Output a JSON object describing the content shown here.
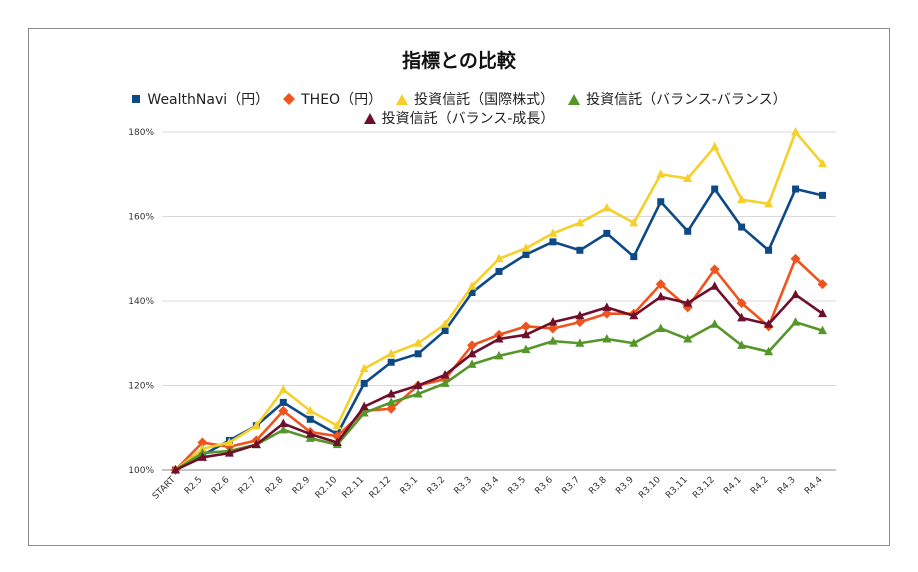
{
  "chart_data": {
    "type": "line",
    "title": "指標との比較",
    "xlabel": "",
    "ylabel": "",
    "categories": [
      "START",
      "R2.5",
      "R2.6",
      "R2.7",
      "R2.8",
      "R2.9",
      "R2.10",
      "R2.11",
      "R2.12",
      "R3.1",
      "R3.2",
      "R3.3",
      "R3.4",
      "R3.5",
      "R3.6",
      "R3.7",
      "R3.8",
      "R3.9",
      "R3.10",
      "R3.11",
      "R3.12",
      "R4.1",
      "R4.2",
      "R4.3",
      "R4.4"
    ],
    "ylim": [
      100,
      180
    ],
    "yticks": [
      100,
      120,
      140,
      160,
      180
    ],
    "ytick_labels": [
      "100%",
      "120%",
      "140%",
      "160%",
      "180%"
    ],
    "grid": true,
    "legend_position": "top",
    "series": [
      {
        "name": "WealthNavi（円）",
        "color": "#0d4a85",
        "marker": "square",
        "values": [
          100,
          103.5,
          107,
          110.5,
          116,
          112,
          108.5,
          120.5,
          125.5,
          127.5,
          133,
          142,
          147,
          151,
          154,
          152,
          156,
          150.5,
          163.5,
          156.5,
          166.5,
          157.5,
          152,
          166.5,
          165
        ]
      },
      {
        "name": "THEO（円）",
        "color": "#f0541e",
        "marker": "diamond",
        "values": [
          100,
          106.5,
          105.5,
          107,
          114,
          109,
          108,
          114,
          114.5,
          120,
          121.5,
          129.5,
          132,
          134,
          133.5,
          135,
          137,
          137,
          144,
          138.5,
          147.5,
          139.5,
          134,
          150,
          144
        ]
      },
      {
        "name": "投資信託（国際株式）",
        "color": "#f5d02a",
        "marker": "triangle",
        "values": [
          100,
          105,
          106.5,
          110.5,
          119,
          114,
          110.5,
          124,
          127.5,
          130,
          134.5,
          143.5,
          150,
          152.5,
          156,
          158.5,
          162,
          158.5,
          170,
          169,
          176.5,
          164,
          163,
          180,
          172.5
        ]
      },
      {
        "name": "投資信託（バランス-バランス）",
        "color": "#55962a",
        "marker": "triangle",
        "values": [
          100,
          104,
          104.5,
          106,
          109.5,
          107.5,
          106,
          113.5,
          116,
          118,
          120.5,
          125,
          127,
          128.5,
          130.5,
          130,
          131,
          130,
          133.5,
          131,
          134.5,
          129.5,
          128,
          135,
          133
        ]
      },
      {
        "name": "投資信託（バランス-成長）",
        "color": "#6e0f2b",
        "marker": "triangle",
        "values": [
          100,
          103,
          104,
          106,
          111,
          108.5,
          106.5,
          115,
          118,
          120,
          122.5,
          127.5,
          131,
          132,
          135,
          136.5,
          138.5,
          136.5,
          141,
          139.5,
          143.5,
          136,
          134.5,
          141.5,
          137
        ]
      }
    ]
  }
}
